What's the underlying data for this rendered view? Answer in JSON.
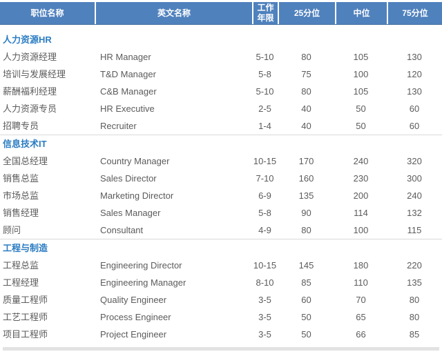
{
  "colors": {
    "header-bg": "#4f81bd",
    "header-text": "#ffffff",
    "section-title": "#2b7cc2",
    "data-text": "#5b5b5b",
    "divider": "#d9d9d9",
    "bottom-bar": "#e2e2e2"
  },
  "table": {
    "columns": [
      {
        "label": "职位名称"
      },
      {
        "label": "英文名称"
      },
      {
        "label": "工作年限"
      },
      {
        "label": "25分位"
      },
      {
        "label": "中位"
      },
      {
        "label": "75分位"
      }
    ],
    "sections": [
      {
        "title": "人力资源HR",
        "rows": [
          [
            "人力资源经理",
            "HR Manager",
            "5-10",
            "80",
            "105",
            "130"
          ],
          [
            "培训与发展经理",
            "T&D Manager",
            "5-8",
            "75",
            "100",
            "120"
          ],
          [
            "薪酬福利经理",
            "C&B Manager",
            "5-10",
            "80",
            "105",
            "130"
          ],
          [
            "人力资源专员",
            "HR Executive",
            "2-5",
            "40",
            "50",
            "60"
          ],
          [
            "招聘专员",
            "Recruiter",
            "1-4",
            "40",
            "50",
            "60"
          ]
        ]
      },
      {
        "title": "信息技术IT",
        "rows": [
          [
            "全国总经理",
            "Country Manager",
            "10-15",
            "170",
            "240",
            "320"
          ],
          [
            "销售总监",
            "Sales Director",
            "7-10",
            "160",
            "230",
            "300"
          ],
          [
            "市场总监",
            "Marketing Director",
            "6-9",
            "135",
            "200",
            "240"
          ],
          [
            "销售经理",
            "Sales Manager",
            "5-8",
            "90",
            "114",
            "132"
          ],
          [
            "顾问",
            "Consultant",
            "4-9",
            "80",
            "100",
            "115"
          ]
        ]
      },
      {
        "title": "工程与制造",
        "rows": [
          [
            "工程总监",
            "Engineering Director",
            "10-15",
            "145",
            "180",
            "220"
          ],
          [
            "工程经理",
            "Engineering Manager",
            "8-10",
            "85",
            "110",
            "135"
          ],
          [
            "质量工程师",
            "Quality Engineer",
            "3-5",
            "60",
            "70",
            "80"
          ],
          [
            "工艺工程师",
            "Process Engineer",
            "3-5",
            "50",
            "65",
            "80"
          ],
          [
            "项目工程师",
            "Project Engineer",
            "3-5",
            "50",
            "66",
            "85"
          ]
        ]
      }
    ]
  }
}
